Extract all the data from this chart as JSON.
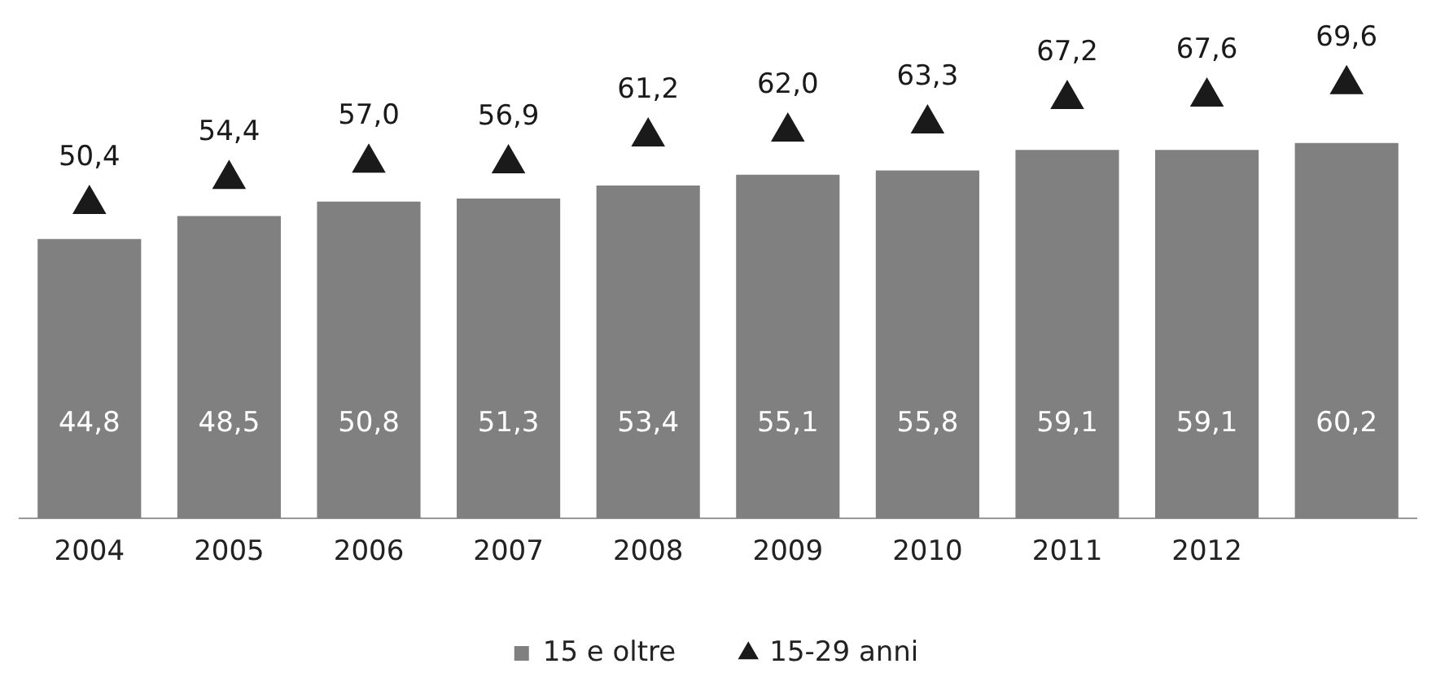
{
  "chart_data": {
    "type": "bar",
    "categories": [
      "2004",
      "2005",
      "2006",
      "2007",
      "2008",
      "2009",
      "2010",
      "2011",
      "2012",
      null
    ],
    "series": [
      {
        "name": "15 e oltre",
        "color": "#808080",
        "values": [
          44.8,
          48.5,
          50.8,
          51.3,
          53.4,
          55.1,
          55.8,
          59.1,
          59.1,
          60.2
        ],
        "value_labels": [
          "44,8",
          "48,5",
          "50,8",
          "51,3",
          "53,4",
          "55,1",
          "55,8",
          "59,1",
          "59,1",
          "60,2"
        ]
      },
      {
        "name": "15-29 anni",
        "type": "scatter",
        "color": "#1a1a1a",
        "marker": "triangle",
        "values": [
          50.4,
          54.4,
          57.0,
          56.9,
          61.2,
          62.0,
          63.3,
          67.2,
          67.6,
          69.6
        ],
        "value_labels": [
          "50,4",
          "54,4",
          "57,0",
          "56,9",
          "61,2",
          "62,0",
          "63,3",
          "67,2",
          "67,6",
          "69,6"
        ]
      }
    ],
    "tick_labels": "x",
    "grid": false,
    "legend": "bottom"
  }
}
